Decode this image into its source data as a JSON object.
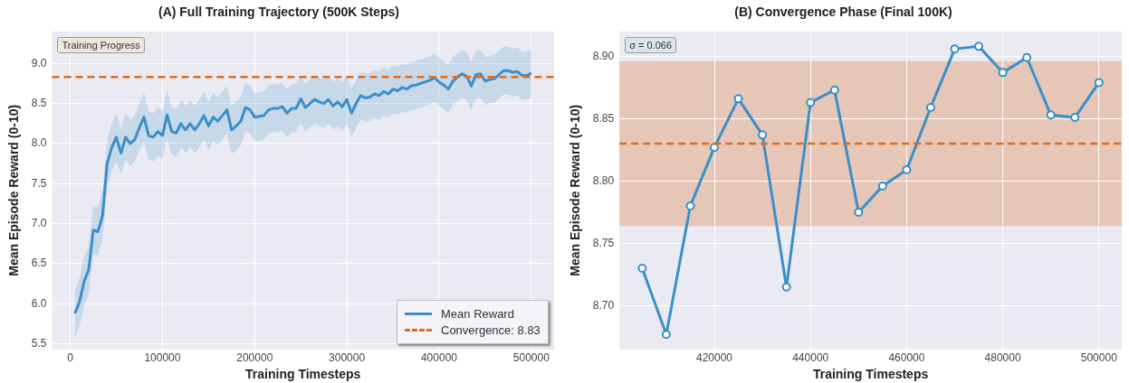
{
  "chart_data": [
    {
      "type": "line",
      "title": "(A) Full Training Trajectory (500K Steps)",
      "xlabel": "Training Timesteps",
      "ylabel": "Mean Episode Reward (0-10)",
      "x": [
        5000,
        10000,
        15000,
        20000,
        25000,
        30000,
        35000,
        40000,
        45000,
        50000,
        55000,
        60000,
        65000,
        70000,
        75000,
        80000,
        85000,
        90000,
        95000,
        100000,
        105000,
        110000,
        115000,
        120000,
        125000,
        130000,
        135000,
        140000,
        145000,
        150000,
        155000,
        160000,
        165000,
        170000,
        175000,
        180000,
        185000,
        190000,
        195000,
        200000,
        205000,
        210000,
        215000,
        220000,
        225000,
        230000,
        235000,
        240000,
        245000,
        250000,
        255000,
        260000,
        265000,
        270000,
        275000,
        280000,
        285000,
        290000,
        295000,
        300000,
        305000,
        310000,
        315000,
        320000,
        325000,
        330000,
        335000,
        340000,
        345000,
        350000,
        355000,
        360000,
        365000,
        370000,
        375000,
        380000,
        385000,
        390000,
        395000,
        400000,
        405000,
        410000,
        415000,
        420000,
        425000,
        430000,
        435000,
        440000,
        445000,
        450000,
        455000,
        460000,
        465000,
        470000,
        475000,
        480000,
        485000,
        490000,
        495000,
        500000
      ],
      "series": [
        {
          "name": "Mean Reward",
          "color": "#3a8fc8",
          "values": [
            5.88,
            6.02,
            6.28,
            6.42,
            6.92,
            6.9,
            7.1,
            7.75,
            7.95,
            8.08,
            7.88,
            8.08,
            8.0,
            8.05,
            8.2,
            8.33,
            8.1,
            8.08,
            8.15,
            8.1,
            8.36,
            8.15,
            8.13,
            8.25,
            8.17,
            8.25,
            8.17,
            8.25,
            8.35,
            8.22,
            8.33,
            8.28,
            8.35,
            8.42,
            8.17,
            8.22,
            8.28,
            8.45,
            8.42,
            8.33,
            8.34,
            8.35,
            8.42,
            8.44,
            8.44,
            8.46,
            8.38,
            8.44,
            8.44,
            8.56,
            8.45,
            8.5,
            8.55,
            8.52,
            8.5,
            8.55,
            8.47,
            8.52,
            8.46,
            8.55,
            8.38,
            8.5,
            8.6,
            8.57,
            8.58,
            8.62,
            8.6,
            8.65,
            8.62,
            8.68,
            8.66,
            8.7,
            8.68,
            8.72,
            8.73,
            8.75,
            8.77,
            8.79,
            8.82,
            8.77,
            8.73,
            8.68,
            8.78,
            8.83,
            8.87,
            8.84,
            8.72,
            8.86,
            8.87,
            8.78,
            8.8,
            8.81,
            8.86,
            8.91,
            8.91,
            8.89,
            8.9,
            8.85,
            8.85,
            8.88
          ],
          "lower": [
            5.58,
            5.72,
            5.98,
            6.12,
            6.62,
            6.6,
            6.8,
            7.45,
            7.65,
            7.78,
            7.62,
            7.8,
            7.72,
            7.78,
            7.92,
            8.02,
            7.8,
            7.78,
            7.85,
            7.8,
            8.06,
            7.86,
            7.84,
            7.95,
            7.88,
            7.96,
            7.88,
            7.95,
            8.05,
            7.92,
            8.03,
            7.98,
            8.05,
            8.12,
            7.87,
            7.92,
            7.98,
            8.15,
            8.12,
            8.03,
            8.04,
            8.05,
            8.12,
            8.14,
            8.14,
            8.16,
            8.08,
            8.14,
            8.14,
            8.26,
            8.15,
            8.2,
            8.25,
            8.22,
            8.2,
            8.25,
            8.17,
            8.22,
            8.16,
            8.25,
            8.08,
            8.2,
            8.3,
            8.27,
            8.28,
            8.32,
            8.3,
            8.35,
            8.32,
            8.38,
            8.36,
            8.4,
            8.38,
            8.42,
            8.43,
            8.45,
            8.47,
            8.49,
            8.52,
            8.47,
            8.43,
            8.38,
            8.48,
            8.53,
            8.57,
            8.54,
            8.42,
            8.56,
            8.57,
            8.48,
            8.5,
            8.51,
            8.56,
            8.61,
            8.61,
            8.59,
            8.6,
            8.55,
            8.55,
            8.58
          ],
          "upper": [
            6.18,
            6.32,
            6.58,
            6.72,
            7.22,
            7.2,
            7.4,
            8.05,
            8.25,
            8.38,
            8.18,
            8.38,
            8.3,
            8.35,
            8.5,
            8.64,
            8.4,
            8.38,
            8.45,
            8.4,
            8.66,
            8.45,
            8.43,
            8.55,
            8.47,
            8.55,
            8.47,
            8.55,
            8.65,
            8.52,
            8.63,
            8.58,
            8.65,
            8.72,
            8.47,
            8.52,
            8.58,
            8.75,
            8.72,
            8.63,
            8.64,
            8.65,
            8.72,
            8.74,
            8.74,
            8.76,
            8.68,
            8.74,
            8.74,
            8.86,
            8.75,
            8.8,
            8.85,
            8.82,
            8.8,
            8.85,
            8.77,
            8.82,
            8.76,
            8.85,
            8.68,
            8.8,
            8.9,
            8.87,
            8.88,
            8.92,
            8.9,
            8.95,
            8.92,
            8.98,
            8.96,
            9.0,
            8.98,
            9.02,
            9.03,
            9.05,
            9.07,
            9.09,
            9.12,
            9.07,
            9.03,
            8.98,
            9.08,
            9.13,
            9.17,
            9.14,
            9.02,
            9.16,
            9.17,
            9.08,
            9.1,
            9.11,
            9.16,
            9.21,
            9.21,
            9.19,
            9.2,
            9.15,
            9.15,
            9.18
          ]
        }
      ],
      "ref_lines": [
        {
          "axis": "y",
          "value": 8.83,
          "label": "Convergence: 8.83",
          "color": "#e06c1a",
          "line_style": "dashed"
        }
      ],
      "annotations": [
        "Training Progress"
      ],
      "xlim": [
        -19750,
        524750
      ],
      "ylim": [
        5.43,
        9.4
      ],
      "xticks": [
        0,
        100000,
        200000,
        300000,
        400000,
        500000
      ],
      "yticks": [
        {
          "value": 5.5,
          "label": "5.5"
        },
        {
          "value": 6,
          "label": "6.0"
        },
        {
          "value": 6.5,
          "label": "6.5"
        },
        {
          "value": 7,
          "label": "7.0"
        },
        {
          "value": 7.5,
          "label": "7.5"
        },
        {
          "value": 8,
          "label": "8.0"
        },
        {
          "value": 8.5,
          "label": "8.5"
        },
        {
          "value": 9,
          "label": "9.0"
        }
      ],
      "grid": true,
      "legend": "bottom right",
      "marker": "none",
      "line_style": "solid"
    },
    {
      "type": "line",
      "title": "(B) Convergence Phase (Final 100K)",
      "xlabel": "Training Timesteps",
      "ylabel": "Mean Episode Reward (0-10)",
      "x": [
        405000,
        410000,
        415000,
        420000,
        425000,
        430000,
        435000,
        440000,
        445000,
        450000,
        455000,
        460000,
        465000,
        470000,
        475000,
        480000,
        485000,
        490000,
        495000,
        500000
      ],
      "series": [
        {
          "color": "#3a8fc8",
          "values": [
            8.73,
            8.677,
            8.78,
            8.827,
            8.866,
            8.837,
            8.715,
            8.863,
            8.873,
            8.775,
            8.796,
            8.809,
            8.859,
            8.906,
            8.908,
            8.887,
            8.899,
            8.853,
            8.851,
            8.879
          ]
        }
      ],
      "ref_lines": [
        {
          "axis": "y",
          "value": 8.83,
          "color": "#e06c1a",
          "line_style": "dashed"
        }
      ],
      "bands": [
        {
          "axis": "y",
          "from": 8.764,
          "to": 8.896,
          "color": "#e2a27c"
        }
      ],
      "annotations": [
        "σ = 0.066"
      ],
      "xlim": [
        400250,
        504750
      ],
      "ylim": [
        8.665,
        8.92
      ],
      "xticks": [
        420000,
        440000,
        460000,
        480000,
        500000
      ],
      "yticks": [
        {
          "value": 8.7,
          "label": "8.70"
        },
        {
          "value": 8.75,
          "label": "8.75"
        },
        {
          "value": 8.8,
          "label": "8.80"
        },
        {
          "value": 8.85,
          "label": "8.85"
        },
        {
          "value": 8.9,
          "label": "8.90"
        }
      ],
      "grid": true,
      "marker": "circle",
      "line_style": "solid"
    }
  ]
}
